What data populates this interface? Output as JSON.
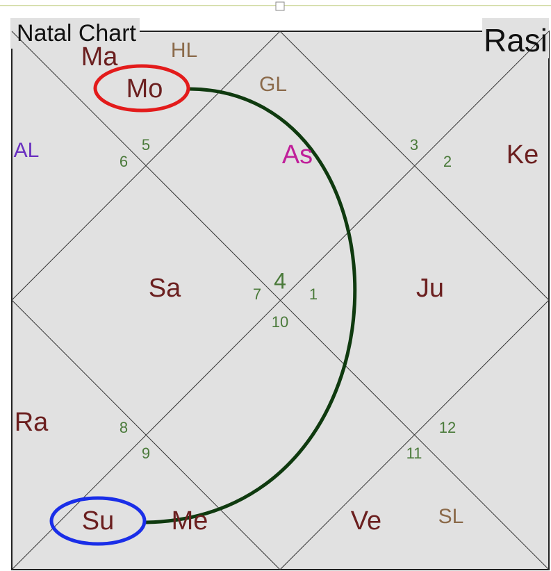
{
  "header": {
    "title": "Natal Chart",
    "chart_name": "Rasi"
  },
  "bodies": [
    {
      "label": "Ma",
      "color": "#6b1f1f"
    },
    {
      "label": "HL",
      "color": "#8b6a4a"
    },
    {
      "label": "Mo",
      "color": "#6b1f1f"
    },
    {
      "label": "GL",
      "color": "#8b6a4a"
    },
    {
      "label": "AL",
      "color": "#6a30c0"
    },
    {
      "label": "As",
      "color": "#c0209a"
    },
    {
      "label": "Ke",
      "color": "#6b1f1f"
    },
    {
      "label": "Sa",
      "color": "#6b1f1f"
    },
    {
      "label": "Ju",
      "color": "#6b1f1f"
    },
    {
      "label": "Ra",
      "color": "#6b1f1f"
    },
    {
      "label": "Su",
      "color": "#6b1f1f"
    },
    {
      "label": "Me",
      "color": "#6b1f1f"
    },
    {
      "label": "Ve",
      "color": "#6b1f1f"
    },
    {
      "label": "SL",
      "color": "#8b6a4a"
    }
  ],
  "houses": [
    "5",
    "6",
    "3",
    "2",
    "4",
    "7",
    "1",
    "10",
    "8",
    "9",
    "12",
    "11"
  ]
}
